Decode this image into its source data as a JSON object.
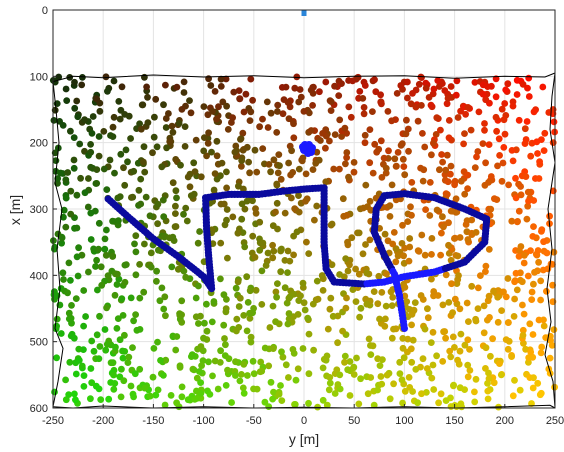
{
  "chart_data": {
    "type": "scatter",
    "title": "",
    "xlabel": "y [m]",
    "ylabel": "x [m]",
    "xlim": [
      -250,
      250
    ],
    "ylim": [
      0,
      600
    ],
    "y_axis_inverted": true,
    "grid": true,
    "x_ticks": [
      "-250",
      "-200",
      "-150",
      "-100",
      "-50",
      "0",
      "50",
      "100",
      "150",
      "200",
      "250"
    ],
    "y_ticks": [
      "0",
      "100",
      "200",
      "300",
      "400",
      "500",
      "600"
    ],
    "point_cloud": {
      "x_range": [
        -250,
        250
      ],
      "y_range": [
        100,
        600
      ],
      "approx_count": 1600,
      "color_corners": {
        "top_left": "#142a0a",
        "top_right": "#ff0d00",
        "bottom_left": "#1fd60a",
        "bottom_right": "#ffd100"
      }
    },
    "boundary": {
      "color": "#000000",
      "top": [
        [
          -250,
          108
        ],
        [
          -230,
          100
        ],
        [
          -200,
          102
        ],
        [
          -150,
          98
        ],
        [
          -100,
          101
        ],
        [
          -50,
          99
        ],
        [
          0,
          102
        ],
        [
          50,
          100
        ],
        [
          100,
          99
        ],
        [
          150,
          103
        ],
        [
          200,
          100
        ],
        [
          240,
          101
        ],
        [
          250,
          95
        ]
      ],
      "bottom": [
        [
          -250,
          598
        ],
        [
          -230,
          600
        ],
        [
          -200,
          597
        ],
        [
          -150,
          600
        ],
        [
          -100,
          598
        ],
        [
          -50,
          600
        ],
        [
          0,
          599
        ],
        [
          50,
          600
        ],
        [
          100,
          598
        ],
        [
          150,
          600
        ],
        [
          200,
          598
        ],
        [
          245,
          596
        ],
        [
          250,
          600
        ]
      ],
      "left": [
        [
          -250,
          108
        ],
        [
          -247,
          150
        ],
        [
          -244,
          200
        ],
        [
          -248,
          260
        ],
        [
          -241,
          300
        ],
        [
          -246,
          360
        ],
        [
          -243,
          420
        ],
        [
          -248,
          480
        ],
        [
          -240,
          510
        ],
        [
          -245,
          560
        ],
        [
          -250,
          598
        ]
      ],
      "right": [
        [
          250,
          95
        ],
        [
          247,
          130
        ],
        [
          245,
          180
        ],
        [
          250,
          230
        ],
        [
          243,
          300
        ],
        [
          247,
          360
        ],
        [
          242,
          420
        ],
        [
          246,
          470
        ],
        [
          240,
          520
        ],
        [
          248,
          560
        ],
        [
          250,
          600
        ]
      ]
    },
    "trajectory": {
      "color": "#0a0a9e",
      "highlight_color": "#1a1aff",
      "path": [
        [
          -195,
          285
        ],
        [
          -175,
          312
        ],
        [
          -150,
          345
        ],
        [
          -125,
          372
        ],
        [
          -100,
          402
        ],
        [
          -92,
          420
        ],
        [
          -95,
          370
        ],
        [
          -97,
          330
        ],
        [
          -98,
          283
        ],
        [
          -75,
          278
        ],
        [
          -45,
          278
        ],
        [
          -20,
          273
        ],
        [
          0,
          270
        ],
        [
          20,
          268
        ],
        [
          20,
          300
        ],
        [
          20,
          350
        ],
        [
          22,
          390
        ],
        [
          30,
          410
        ],
        [
          60,
          413
        ],
        [
          80,
          410
        ],
        [
          100,
          402
        ],
        [
          130,
          395
        ],
        [
          160,
          380
        ],
        [
          180,
          350
        ],
        [
          182,
          315
        ],
        [
          160,
          300
        ],
        [
          130,
          283
        ],
        [
          100,
          277
        ],
        [
          80,
          280
        ],
        [
          72,
          300
        ],
        [
          70,
          335
        ],
        [
          80,
          370
        ],
        [
          90,
          398
        ],
        [
          95,
          430
        ],
        [
          98,
          460
        ],
        [
          100,
          480
        ]
      ],
      "blob": [
        3,
        208
      ],
      "start_marker": {
        "x": 0,
        "y": 0,
        "color": "#2a85d9"
      }
    }
  }
}
